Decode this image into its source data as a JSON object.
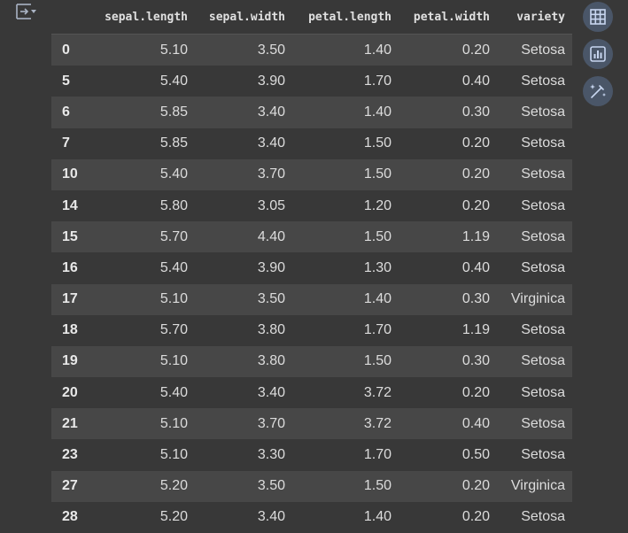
{
  "table": {
    "columns": [
      "",
      "sepal.length",
      "sepal.width",
      "petal.length",
      "petal.width",
      "variety"
    ],
    "rows": [
      [
        "0",
        "5.10",
        "3.50",
        "1.40",
        "0.20",
        "Setosa"
      ],
      [
        "5",
        "5.40",
        "3.90",
        "1.70",
        "0.40",
        "Setosa"
      ],
      [
        "6",
        "5.85",
        "3.40",
        "1.40",
        "0.30",
        "Setosa"
      ],
      [
        "7",
        "5.85",
        "3.40",
        "1.50",
        "0.20",
        "Setosa"
      ],
      [
        "10",
        "5.40",
        "3.70",
        "1.50",
        "0.20",
        "Setosa"
      ],
      [
        "14",
        "5.80",
        "3.05",
        "1.20",
        "0.20",
        "Setosa"
      ],
      [
        "15",
        "5.70",
        "4.40",
        "1.50",
        "1.19",
        "Setosa"
      ],
      [
        "16",
        "5.40",
        "3.90",
        "1.30",
        "0.40",
        "Setosa"
      ],
      [
        "17",
        "5.10",
        "3.50",
        "1.40",
        "0.30",
        "Virginica"
      ],
      [
        "18",
        "5.70",
        "3.80",
        "1.70",
        "1.19",
        "Setosa"
      ],
      [
        "19",
        "5.10",
        "3.80",
        "1.50",
        "0.30",
        "Setosa"
      ],
      [
        "20",
        "5.40",
        "3.40",
        "3.72",
        "0.20",
        "Setosa"
      ],
      [
        "21",
        "5.10",
        "3.70",
        "3.72",
        "0.40",
        "Setosa"
      ],
      [
        "23",
        "5.10",
        "3.30",
        "1.70",
        "0.50",
        "Setosa"
      ],
      [
        "27",
        "5.20",
        "3.50",
        "1.50",
        "0.20",
        "Virginica"
      ],
      [
        "28",
        "5.20",
        "3.40",
        "1.40",
        "0.20",
        "Setosa"
      ]
    ]
  },
  "icons": {
    "output_toggle": "output-toggle-icon",
    "table": "table-view-icon",
    "chart": "bar-chart-icon",
    "magic": "magic-wand-icon"
  },
  "colors": {
    "background": "#383838",
    "row_stripe": "#474747",
    "tool_button": "#4a5668",
    "icon": "#c8d6f0"
  }
}
